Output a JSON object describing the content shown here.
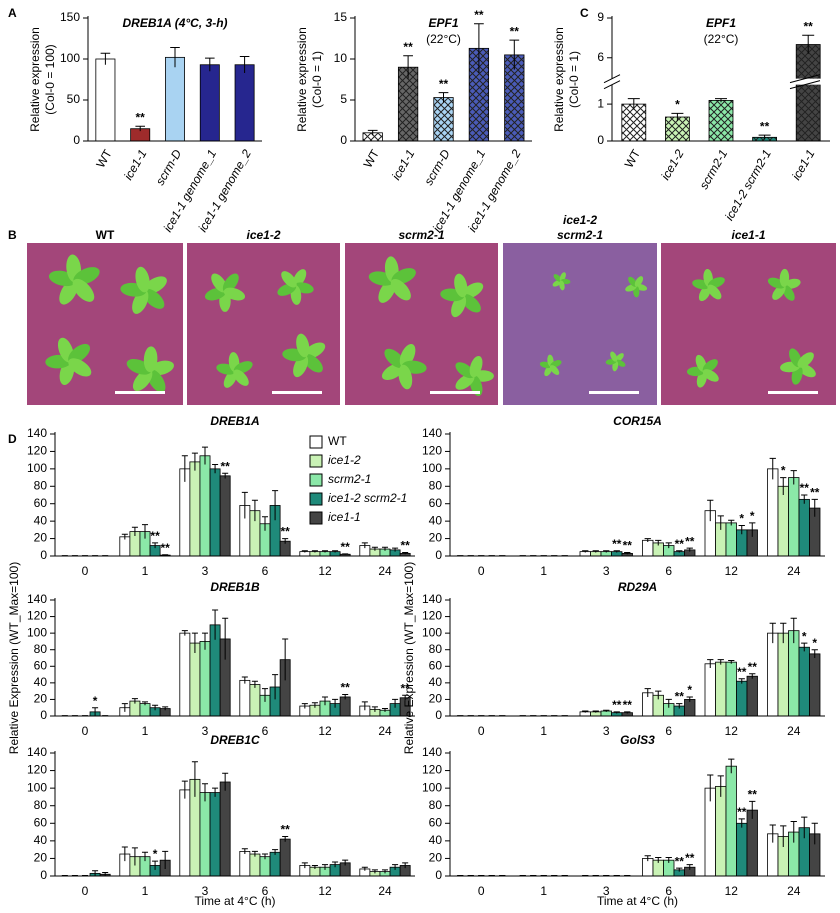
{
  "panel_labels": [
    "A",
    "B",
    "C",
    "D"
  ],
  "photo_labels": [
    [
      "WT"
    ],
    [
      "ice1-2"
    ],
    [
      "scrm2-1"
    ],
    [
      "ice1-2",
      "scrm2-1"
    ],
    [
      "ice1-1"
    ]
  ],
  "chart_data": [
    {
      "type": "bar",
      "title": "DREB1A (4°C, 3-h)",
      "ylabel": [
        "Relative expression",
        "(Col-0 = 100)"
      ],
      "categories": [
        "WT",
        "ice1-1",
        "scrm-D",
        "ice1-1 genome_1",
        "ice1-1 genome_2"
      ],
      "values": [
        100,
        15,
        102,
        93,
        93
      ],
      "errors": [
        7,
        3,
        12,
        8,
        10
      ],
      "colors": [
        "#ffffff",
        "#9e2b2b",
        "#a9d3f2",
        "#26268f",
        "#26268f"
      ],
      "significance": [
        null,
        "**",
        null,
        null,
        null
      ],
      "ylim": [
        0,
        150
      ],
      "yticks": [
        0,
        50,
        100,
        150
      ]
    },
    {
      "type": "bar",
      "title": "EPF1",
      "title_color": "#1a1a8c",
      "subtitle": "(22°C)",
      "ylabel": [
        "Relative expression",
        "(Col-0 = 1)"
      ],
      "categories": [
        "WT",
        "ice1-1",
        "scrm-D",
        "ice1-1 genome_1",
        "ice1-1 genome_2"
      ],
      "values": [
        1,
        9,
        5.3,
        11.3,
        10.5
      ],
      "errors": [
        0.3,
        1.4,
        0.6,
        3,
        1.8
      ],
      "colors": [
        "#ffffff",
        "#666666",
        "#a9d3f2",
        "#4a5bb8",
        "#4a5bb8"
      ],
      "hatch": true,
      "significance": [
        null,
        "**",
        "**",
        "**",
        "**"
      ],
      "ylim": [
        0,
        15
      ],
      "yticks": [
        0,
        5,
        10,
        15
      ]
    },
    {
      "type": "bar",
      "title": "EPF1",
      "title_color": "#1a1a8c",
      "subtitle": "(22°C)",
      "ylabel": [
        "Relative expression",
        "(Col-0 = 1)"
      ],
      "categories": [
        "WT",
        "ice1-2",
        "scrm2-1",
        "ice1-2 scrm2-1",
        "ice1-1"
      ],
      "values": [
        1,
        0.65,
        1.1,
        0.1,
        7
      ],
      "errors": [
        0.15,
        0.1,
        0.05,
        0.06,
        0.7
      ],
      "colors": [
        "#ffffff",
        "#c9f2b5",
        "#8be8a8",
        "#1f8a7a",
        "#444444"
      ],
      "hatch": true,
      "significance": [
        null,
        "*",
        null,
        "**",
        "**"
      ],
      "ylim": [
        0,
        9
      ],
      "yticks": [
        0,
        1,
        6,
        9
      ],
      "axis_break": [
        1.5,
        4.5
      ]
    },
    {
      "type": "bar",
      "title": "DREB1A",
      "categories": [
        "0",
        "1",
        "3",
        "6",
        "12",
        "24"
      ],
      "ylim": [
        0,
        140
      ],
      "yticks": [
        0,
        20,
        40,
        60,
        80,
        100,
        120,
        140
      ],
      "legend": "top-right",
      "series": [
        {
          "name": "WT",
          "color": "#ffffff",
          "values": [
            0,
            22,
            100,
            58,
            5,
            12
          ],
          "errors": [
            0.5,
            3,
            15,
            15,
            1,
            3
          ],
          "significance": [
            null,
            null,
            null,
            null,
            null,
            null
          ]
        },
        {
          "name": "ice1-2",
          "color": "#c9f2b5",
          "values": [
            0,
            28,
            108,
            52,
            5,
            8
          ],
          "errors": [
            0.5,
            5,
            10,
            12,
            1,
            2
          ],
          "significance": [
            null,
            null,
            null,
            null,
            null,
            null
          ]
        },
        {
          "name": "scrm2-1",
          "color": "#8be8a8",
          "values": [
            0,
            28,
            115,
            37,
            5,
            8
          ],
          "errors": [
            0.5,
            8,
            10,
            8,
            1,
            2
          ],
          "significance": [
            null,
            null,
            null,
            null,
            null,
            null
          ]
        },
        {
          "name": "ice1-2 scrm2-1",
          "color": "#1f8a7a",
          "values": [
            0,
            12,
            100,
            58,
            5,
            7
          ],
          "errors": [
            0.5,
            3,
            5,
            17,
            1,
            2
          ],
          "significance": [
            null,
            "**",
            null,
            null,
            null,
            null
          ]
        },
        {
          "name": "ice1-1",
          "color": "#444444",
          "values": [
            0,
            1,
            92,
            17,
            2,
            3
          ],
          "errors": [
            0.5,
            0.5,
            3,
            3,
            0.5,
            1
          ],
          "significance": [
            null,
            "**",
            "**",
            "**",
            "**",
            "**"
          ]
        }
      ]
    },
    {
      "type": "bar",
      "title": "COR15A",
      "categories": [
        "0",
        "1",
        "3",
        "6",
        "12",
        "24"
      ],
      "ylim": [
        0,
        140
      ],
      "yticks": [
        0,
        20,
        40,
        60,
        80,
        100,
        120,
        140
      ],
      "series": [
        {
          "name": "WT",
          "color": "#ffffff",
          "values": [
            0,
            0,
            5,
            18,
            52,
            100
          ],
          "errors": [
            0.5,
            0.5,
            1,
            2,
            12,
            12
          ],
          "significance": [
            null,
            null,
            null,
            null,
            null,
            null
          ]
        },
        {
          "name": "ice1-2",
          "color": "#c9f2b5",
          "values": [
            0,
            0,
            5,
            15,
            38,
            80
          ],
          "errors": [
            0.5,
            0.5,
            1,
            3,
            8,
            10
          ],
          "significance": [
            null,
            null,
            null,
            null,
            null,
            "*"
          ]
        },
        {
          "name": "scrm2-1",
          "color": "#8be8a8",
          "values": [
            0,
            0,
            5,
            12,
            38,
            90
          ],
          "errors": [
            0.5,
            0.5,
            1,
            3,
            3,
            8
          ],
          "significance": [
            null,
            null,
            null,
            null,
            null,
            null
          ]
        },
        {
          "name": "ice1-2 scrm2-1",
          "color": "#1f8a7a",
          "values": [
            0,
            0,
            5,
            5,
            30,
            65
          ],
          "errors": [
            0.5,
            0.5,
            1,
            1,
            5,
            5
          ],
          "significance": [
            null,
            null,
            "**",
            "**",
            "*",
            "**"
          ]
        },
        {
          "name": "ice1-1",
          "color": "#444444",
          "values": [
            0,
            0,
            3,
            7,
            30,
            55
          ],
          "errors": [
            0.5,
            0.5,
            1,
            2,
            8,
            10
          ],
          "significance": [
            null,
            null,
            "**",
            "**",
            "*",
            "**"
          ]
        }
      ]
    },
    {
      "type": "bar",
      "title": "DREB1B",
      "ylabel": "Relative Expression (WT_Max=100)",
      "categories": [
        "0",
        "1",
        "3",
        "6",
        "12",
        "24"
      ],
      "ylim": [
        0,
        140
      ],
      "yticks": [
        0,
        20,
        40,
        60,
        80,
        100,
        120,
        140
      ],
      "series": [
        {
          "name": "WT",
          "color": "#ffffff",
          "values": [
            0,
            10,
            100,
            43,
            12,
            12
          ],
          "errors": [
            0.5,
            5,
            3,
            4,
            3,
            5
          ],
          "significance": [
            null,
            null,
            null,
            null,
            null,
            null
          ]
        },
        {
          "name": "ice1-2",
          "color": "#c9f2b5",
          "values": [
            0,
            18,
            88,
            38,
            13,
            8
          ],
          "errors": [
            0.5,
            3,
            12,
            4,
            3,
            3
          ],
          "significance": [
            null,
            null,
            null,
            null,
            null,
            null
          ]
        },
        {
          "name": "scrm2-1",
          "color": "#8be8a8",
          "values": [
            0,
            15,
            90,
            25,
            18,
            7
          ],
          "errors": [
            0.5,
            2,
            10,
            8,
            5,
            2
          ],
          "significance": [
            null,
            null,
            null,
            null,
            null,
            null
          ]
        },
        {
          "name": "ice1-2 scrm2-1",
          "color": "#1f8a7a",
          "values": [
            5,
            10,
            110,
            35,
            15,
            15
          ],
          "errors": [
            5,
            3,
            18,
            15,
            5,
            5
          ],
          "significance": [
            "*",
            null,
            null,
            null,
            null,
            null
          ]
        },
        {
          "name": "ice1-1",
          "color": "#444444",
          "values": [
            0,
            9,
            93,
            68,
            23,
            22
          ],
          "errors": [
            0.5,
            2,
            25,
            25,
            3,
            3
          ],
          "significance": [
            null,
            null,
            null,
            null,
            "**",
            "**"
          ]
        }
      ]
    },
    {
      "type": "bar",
      "title": "RD29A",
      "ylabel": "Relative Expression (WT_Max=100)",
      "categories": [
        "0",
        "1",
        "3",
        "6",
        "12",
        "24"
      ],
      "ylim": [
        0,
        140
      ],
      "yticks": [
        0,
        20,
        40,
        60,
        80,
        100,
        120,
        140
      ],
      "series": [
        {
          "name": "WT",
          "color": "#ffffff",
          "values": [
            0,
            0,
            5,
            28,
            63,
            100
          ],
          "errors": [
            0.5,
            0.5,
            1,
            5,
            5,
            12
          ],
          "significance": [
            null,
            null,
            null,
            null,
            null,
            null
          ]
        },
        {
          "name": "ice1-2",
          "color": "#c9f2b5",
          "values": [
            0,
            0,
            5,
            25,
            65,
            100
          ],
          "errors": [
            0.5,
            0.5,
            1,
            5,
            3,
            12
          ],
          "significance": [
            null,
            null,
            null,
            null,
            null,
            null
          ]
        },
        {
          "name": "scrm2-1",
          "color": "#8be8a8",
          "values": [
            0,
            0,
            6,
            15,
            65,
            103
          ],
          "errors": [
            0.5,
            0.5,
            1,
            5,
            2,
            15
          ],
          "significance": [
            null,
            null,
            null,
            null,
            null,
            null
          ]
        },
        {
          "name": "ice1-2 scrm2-1",
          "color": "#1f8a7a",
          "values": [
            0,
            0,
            4,
            12,
            42,
            83
          ],
          "errors": [
            0.5,
            0.5,
            1,
            3,
            3,
            5
          ],
          "significance": [
            null,
            null,
            "**",
            "**",
            "**",
            "*"
          ]
        },
        {
          "name": "ice1-1",
          "color": "#444444",
          "values": [
            0,
            0,
            4,
            20,
            48,
            75
          ],
          "errors": [
            0.5,
            0.5,
            1,
            3,
            3,
            5
          ],
          "significance": [
            null,
            null,
            "**",
            "*",
            "**",
            "*"
          ]
        }
      ]
    },
    {
      "type": "bar",
      "title": "DREB1C",
      "xlabel": "Time at 4°C (h)",
      "categories": [
        "0",
        "1",
        "3",
        "6",
        "12",
        "24"
      ],
      "ylim": [
        0,
        140
      ],
      "yticks": [
        0,
        20,
        40,
        60,
        80,
        100,
        120,
        140
      ],
      "series": [
        {
          "name": "WT",
          "color": "#ffffff",
          "values": [
            0,
            25,
            98,
            28,
            12,
            8
          ],
          "errors": [
            0.5,
            8,
            10,
            3,
            3,
            2
          ],
          "significance": [
            null,
            null,
            null,
            null,
            null,
            null
          ]
        },
        {
          "name": "ice1-2",
          "color": "#c9f2b5",
          "values": [
            0,
            22,
            110,
            25,
            10,
            5
          ],
          "errors": [
            0.5,
            10,
            20,
            3,
            2,
            2
          ],
          "significance": [
            null,
            null,
            null,
            null,
            null,
            null
          ]
        },
        {
          "name": "scrm2-1",
          "color": "#8be8a8",
          "values": [
            0,
            22,
            95,
            22,
            10,
            5
          ],
          "errors": [
            0.5,
            5,
            10,
            3,
            3,
            2
          ],
          "significance": [
            null,
            null,
            null,
            null,
            null,
            null
          ]
        },
        {
          "name": "ice1-2 scrm2-1",
          "color": "#1f8a7a",
          "values": [
            3,
            12,
            95,
            27,
            13,
            10
          ],
          "errors": [
            3,
            5,
            5,
            3,
            3,
            3
          ],
          "significance": [
            null,
            "*",
            null,
            null,
            null,
            null
          ]
        },
        {
          "name": "ice1-1",
          "color": "#444444",
          "values": [
            2,
            18,
            107,
            42,
            15,
            12
          ],
          "errors": [
            2,
            10,
            10,
            3,
            3,
            3
          ],
          "significance": [
            null,
            null,
            null,
            "**",
            null,
            null
          ]
        }
      ]
    },
    {
      "type": "bar",
      "title": "GolS3",
      "xlabel": "Time at 4°C (h)",
      "categories": [
        "0",
        "1",
        "3",
        "6",
        "12",
        "24"
      ],
      "ylim": [
        0,
        140
      ],
      "yticks": [
        0,
        20,
        40,
        60,
        80,
        100,
        120,
        140
      ],
      "series": [
        {
          "name": "WT",
          "color": "#ffffff",
          "values": [
            0,
            0,
            0,
            20,
            100,
            48
          ],
          "errors": [
            0.5,
            0.5,
            0.5,
            3,
            15,
            10
          ],
          "significance": [
            null,
            null,
            null,
            null,
            null,
            null
          ]
        },
        {
          "name": "ice1-2",
          "color": "#c9f2b5",
          "values": [
            0,
            0,
            0,
            18,
            102,
            45
          ],
          "errors": [
            0.5,
            0.5,
            0.5,
            3,
            12,
            12
          ],
          "significance": [
            null,
            null,
            null,
            null,
            null,
            null
          ]
        },
        {
          "name": "scrm2-1",
          "color": "#8be8a8",
          "values": [
            0,
            0,
            0,
            18,
            125,
            50
          ],
          "errors": [
            0.5,
            0.5,
            0.5,
            3,
            8,
            12
          ],
          "significance": [
            null,
            null,
            null,
            null,
            null,
            null
          ]
        },
        {
          "name": "ice1-2 scrm2-1",
          "color": "#1f8a7a",
          "values": [
            0,
            0,
            0,
            7,
            60,
            55
          ],
          "errors": [
            0.5,
            0.5,
            0.5,
            2,
            5,
            12
          ],
          "significance": [
            null,
            null,
            null,
            "**",
            "**",
            null
          ]
        },
        {
          "name": "ice1-1",
          "color": "#444444",
          "values": [
            0,
            0,
            0,
            10,
            75,
            48
          ],
          "errors": [
            0.5,
            0.5,
            0.5,
            3,
            10,
            12
          ],
          "significance": [
            null,
            null,
            null,
            "**",
            "**",
            null
          ]
        }
      ]
    }
  ]
}
